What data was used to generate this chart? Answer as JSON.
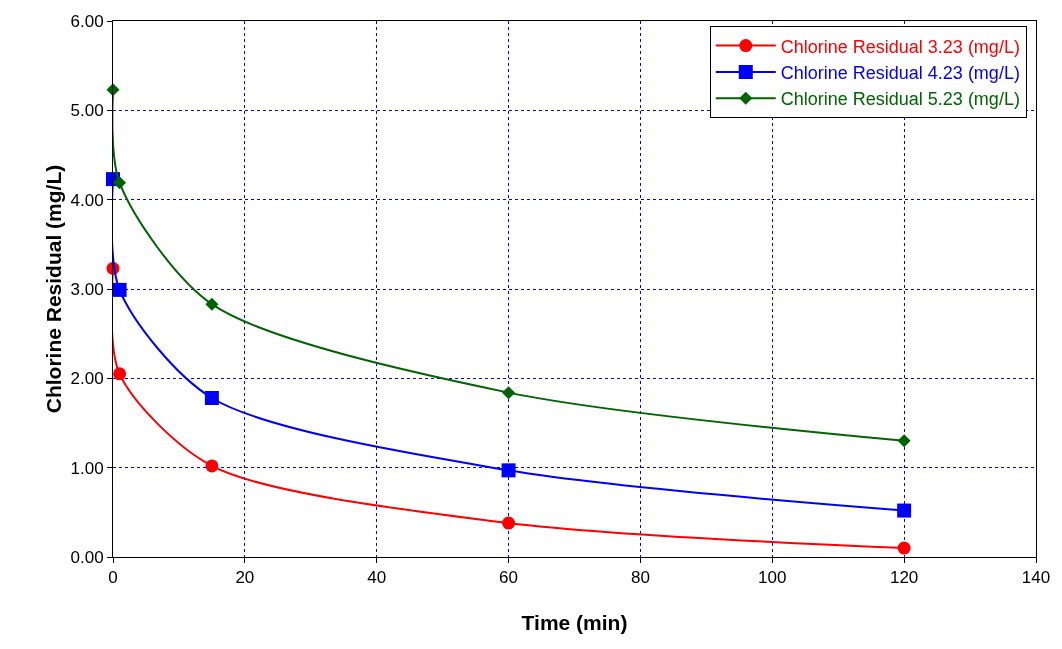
{
  "chart_data": {
    "type": "line",
    "xlabel": "Time (min)",
    "ylabel": "Chlorine Residual (mg/L)",
    "x": [
      0,
      1,
      15,
      60,
      120
    ],
    "series": [
      {
        "name": "Chlorine Residual 3.23 (mg/L)",
        "color": "#ff0000",
        "marker": "circle",
        "values": [
          3.23,
          2.05,
          1.02,
          0.38,
          0.1
        ]
      },
      {
        "name": "Chlorine Residual 4.23 (mg/L)",
        "color": "#0000ff",
        "marker": "square",
        "values": [
          4.23,
          2.99,
          1.78,
          0.97,
          0.52
        ]
      },
      {
        "name": "Chlorine Residual 5.23 (mg/L)",
        "color": "#006400",
        "marker": "diamond",
        "values": [
          5.23,
          4.19,
          2.83,
          1.84,
          1.3
        ]
      }
    ],
    "xlim": [
      0,
      140
    ],
    "xticks": [
      0,
      20,
      40,
      60,
      80,
      100,
      120,
      140
    ],
    "ylim": [
      0,
      6
    ],
    "yticks": [
      {
        "value": 0,
        "label": "0.00"
      },
      {
        "value": 1,
        "label": "1.00"
      },
      {
        "value": 2,
        "label": "2.00"
      },
      {
        "value": 3,
        "label": "3.00"
      },
      {
        "value": 4,
        "label": "4.00"
      },
      {
        "value": 5,
        "label": "5.00"
      },
      {
        "value": 6,
        "label": "6.00"
      }
    ],
    "grid": true,
    "legend": "top right",
    "line_style": "solid"
  }
}
